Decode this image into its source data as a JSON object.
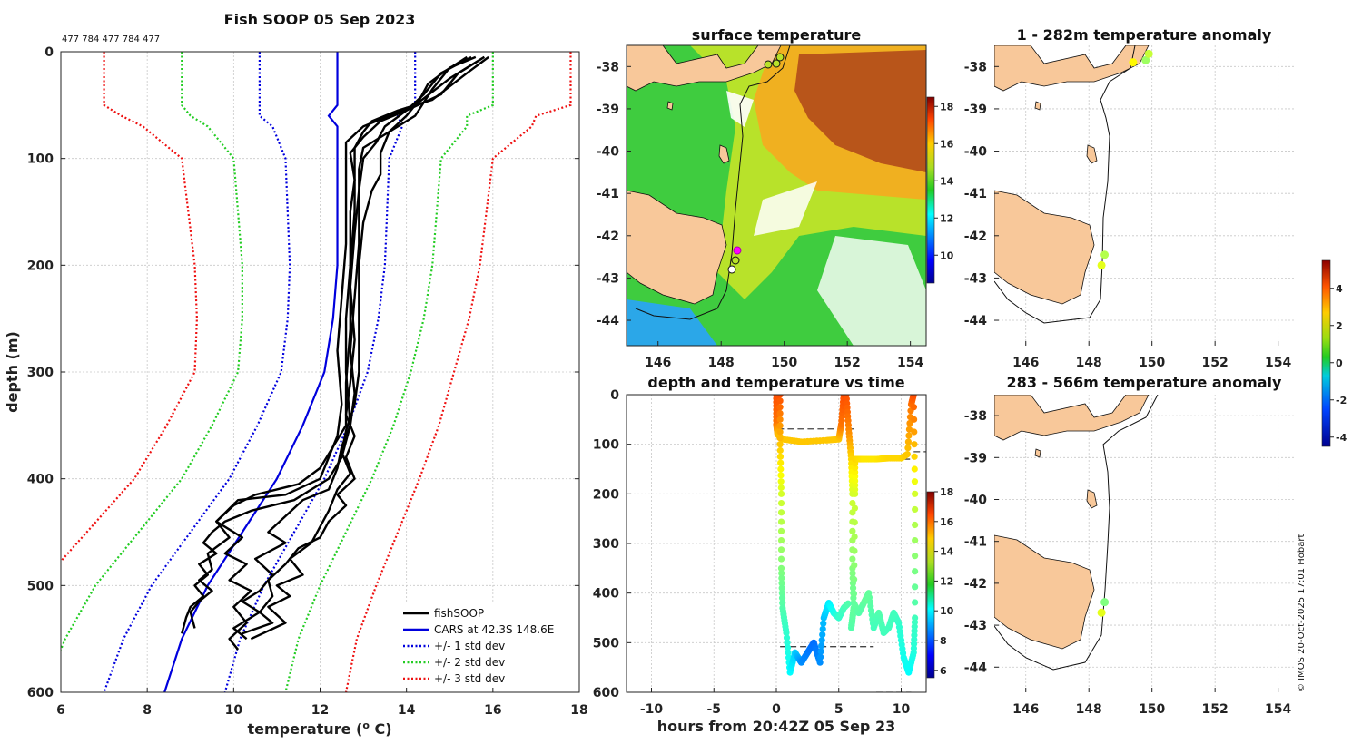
{
  "figure": {
    "title": "Fish SOOP 05 Sep 2023",
    "id_text": "477 784 477 784 477",
    "copyright": "© IMOS 20-Oct-2025 17:01 Hobart"
  },
  "chart_data": [
    {
      "type": "line",
      "id": "profile",
      "title": "Fish SOOP 05 Sep 2023",
      "xlabel": "temperature (",
      "xlabel_sup": "o",
      "xlabel_end": " C)",
      "ylabel": "depth (m)",
      "xlim": [
        6,
        18
      ],
      "ylim": [
        0,
        600
      ],
      "xticks": [
        6,
        8,
        10,
        12,
        14,
        16,
        18
      ],
      "yticks": [
        0,
        100,
        200,
        300,
        400,
        500,
        600
      ],
      "legend": [
        {
          "label": "fishSOOP",
          "color": "#000000",
          "style": "solid"
        },
        {
          "label": "CARS at 42.3S 148.6E",
          "color": "#0000dd",
          "style": "solid"
        },
        {
          "label": "+/- 1 std dev",
          "color": "#0000dd",
          "style": "dotted"
        },
        {
          "label": "+/- 2 std dev",
          "color": "#22cc22",
          "style": "dotted"
        },
        {
          "label": "+/- 3 std dev",
          "color": "#ee1111",
          "style": "dotted"
        }
      ],
      "legend_position": "bottom-right",
      "cars_mean": [
        [
          12.4,
          0
        ],
        [
          12.4,
          50
        ],
        [
          12.2,
          60
        ],
        [
          12.4,
          70
        ],
        [
          12.4,
          100
        ],
        [
          12.4,
          150
        ],
        [
          12.4,
          200
        ],
        [
          12.3,
          250
        ],
        [
          12.1,
          300
        ],
        [
          11.6,
          350
        ],
        [
          11.0,
          400
        ],
        [
          10.2,
          450
        ],
        [
          9.4,
          500
        ],
        [
          8.8,
          550
        ],
        [
          8.4,
          600
        ]
      ],
      "std_offsets": [
        [
          1.8,
          0
        ],
        [
          1.8,
          50
        ],
        [
          1.6,
          60
        ],
        [
          1.2,
          100
        ],
        [
          1.1,
          200
        ],
        [
          1.0,
          300
        ],
        [
          1.1,
          400
        ],
        [
          1.3,
          500
        ],
        [
          1.4,
          600
        ]
      ],
      "fish_profiles": [
        [
          [
            15.9,
            5
          ],
          [
            15.4,
            20
          ],
          [
            14.6,
            45
          ],
          [
            13.8,
            55
          ],
          [
            13.2,
            65
          ],
          [
            13.0,
            75
          ],
          [
            12.8,
            90
          ],
          [
            12.8,
            120
          ],
          [
            12.7,
            150
          ],
          [
            12.7,
            200
          ],
          [
            12.6,
            250
          ],
          [
            12.6,
            300
          ],
          [
            12.7,
            350
          ],
          [
            12.5,
            380
          ],
          [
            12.2,
            400
          ],
          [
            11.4,
            420
          ],
          [
            10.4,
            430
          ],
          [
            9.8,
            440
          ],
          [
            9.5,
            450
          ],
          [
            9.3,
            460
          ],
          [
            9.6,
            470
          ],
          [
            9.2,
            480
          ],
          [
            9.4,
            490
          ],
          [
            9.1,
            500
          ],
          [
            9.3,
            510
          ],
          [
            9.0,
            520
          ],
          [
            8.9,
            530
          ],
          [
            8.8,
            545
          ]
        ],
        [
          [
            15.8,
            5
          ],
          [
            15.0,
            25
          ],
          [
            14.2,
            50
          ],
          [
            13.6,
            60
          ],
          [
            13.0,
            70
          ],
          [
            12.6,
            85
          ],
          [
            12.6,
            110
          ],
          [
            12.6,
            140
          ],
          [
            12.6,
            180
          ],
          [
            12.5,
            230
          ],
          [
            12.4,
            280
          ],
          [
            12.5,
            330
          ],
          [
            12.4,
            360
          ],
          [
            12.2,
            380
          ],
          [
            12.0,
            400
          ],
          [
            11.2,
            415
          ],
          [
            10.1,
            420
          ],
          [
            9.6,
            440
          ],
          [
            9.9,
            455
          ],
          [
            9.4,
            470
          ],
          [
            9.5,
            485
          ],
          [
            9.2,
            495
          ],
          [
            9.5,
            505
          ],
          [
            9.2,
            515
          ],
          [
            9.0,
            525
          ],
          [
            9.1,
            540
          ]
        ],
        [
          [
            15.8,
            5
          ],
          [
            15.2,
            20
          ],
          [
            14.8,
            40
          ],
          [
            14.0,
            55
          ],
          [
            13.4,
            65
          ],
          [
            13.0,
            80
          ],
          [
            12.7,
            95
          ],
          [
            12.8,
            120
          ],
          [
            12.8,
            150
          ],
          [
            12.7,
            200
          ],
          [
            12.7,
            260
          ],
          [
            12.6,
            310
          ],
          [
            12.6,
            350
          ],
          [
            12.3,
            370
          ],
          [
            12.0,
            390
          ],
          [
            11.5,
            405
          ],
          [
            10.5,
            415
          ],
          [
            10.0,
            425
          ],
          [
            9.6,
            440
          ],
          [
            10.2,
            455
          ],
          [
            9.8,
            470
          ],
          [
            10.3,
            480
          ],
          [
            9.9,
            495
          ],
          [
            10.4,
            505
          ],
          [
            10.0,
            520
          ],
          [
            10.3,
            535
          ],
          [
            9.9,
            550
          ],
          [
            10.1,
            560
          ]
        ],
        [
          [
            15.6,
            5
          ],
          [
            15.0,
            15
          ],
          [
            14.6,
            35
          ],
          [
            14.2,
            60
          ],
          [
            13.6,
            75
          ],
          [
            13.0,
            90
          ],
          [
            12.9,
            110
          ],
          [
            12.9,
            140
          ],
          [
            12.9,
            180
          ],
          [
            12.8,
            230
          ],
          [
            12.7,
            280
          ],
          [
            12.8,
            320
          ],
          [
            12.7,
            350
          ],
          [
            12.5,
            370
          ],
          [
            12.4,
            390
          ],
          [
            12.2,
            410
          ],
          [
            11.6,
            420
          ],
          [
            11.2,
            435
          ],
          [
            10.8,
            450
          ],
          [
            11.2,
            460
          ],
          [
            10.5,
            475
          ],
          [
            10.9,
            490
          ],
          [
            10.6,
            505
          ],
          [
            10.2,
            515
          ],
          [
            10.6,
            525
          ],
          [
            10.0,
            540
          ],
          [
            10.3,
            550
          ]
        ],
        [
          [
            15.5,
            5
          ],
          [
            14.8,
            20
          ],
          [
            14.4,
            40
          ],
          [
            14.0,
            55
          ],
          [
            13.5,
            70
          ],
          [
            13.3,
            85
          ],
          [
            13.0,
            100
          ],
          [
            12.9,
            130
          ],
          [
            12.8,
            170
          ],
          [
            12.7,
            220
          ],
          [
            12.8,
            270
          ],
          [
            12.7,
            310
          ],
          [
            12.6,
            340
          ],
          [
            12.8,
            360
          ],
          [
            12.6,
            380
          ],
          [
            12.8,
            400
          ],
          [
            12.4,
            415
          ],
          [
            12.6,
            425
          ],
          [
            12.2,
            440
          ],
          [
            12.0,
            455
          ],
          [
            11.5,
            465
          ],
          [
            11.2,
            480
          ],
          [
            10.8,
            495
          ],
          [
            10.9,
            510
          ],
          [
            10.6,
            525
          ],
          [
            10.9,
            535
          ],
          [
            10.2,
            545
          ]
        ],
        [
          [
            15.4,
            5
          ],
          [
            14.9,
            18
          ],
          [
            14.5,
            30
          ],
          [
            14.3,
            45
          ],
          [
            14.0,
            60
          ],
          [
            13.6,
            75
          ],
          [
            13.4,
            95
          ],
          [
            13.4,
            115
          ],
          [
            13.2,
            130
          ],
          [
            13.0,
            160
          ],
          [
            12.9,
            200
          ],
          [
            12.9,
            250
          ],
          [
            12.9,
            300
          ],
          [
            12.8,
            330
          ],
          [
            12.6,
            355
          ],
          [
            12.5,
            375
          ],
          [
            12.7,
            395
          ],
          [
            12.4,
            410
          ],
          [
            12.2,
            430
          ],
          [
            12.0,
            445
          ],
          [
            11.8,
            460
          ],
          [
            11.3,
            475
          ],
          [
            11.6,
            490
          ],
          [
            11.0,
            500
          ],
          [
            11.3,
            510
          ],
          [
            10.8,
            520
          ],
          [
            11.2,
            535
          ],
          [
            10.4,
            550
          ]
        ]
      ]
    },
    {
      "type": "heatmap",
      "id": "sst_map",
      "title": "surface temperature",
      "xlim": [
        145,
        154.5
      ],
      "ylim": [
        -44.6,
        -37.5
      ],
      "xticks": [
        146,
        148,
        150,
        152,
        154
      ],
      "yticks": [
        -38,
        -39,
        -40,
        -41,
        -42,
        -43,
        -44
      ],
      "colorbar_ticks": [
        10,
        12,
        14,
        16,
        18
      ],
      "colorbar_range": [
        8.5,
        18.5
      ]
    },
    {
      "type": "scatter",
      "id": "time_series",
      "title": "depth and temperature vs time",
      "xlabel": "hours from 20:42Z 05 Sep 23",
      "xlim": [
        -12,
        12
      ],
      "ylim": [
        0,
        600
      ],
      "xticks": [
        -10,
        -5,
        0,
        5,
        10
      ],
      "yticks": [
        0,
        100,
        200,
        300,
        400,
        500,
        600
      ],
      "colorbar_ticks": [
        6,
        8,
        10,
        12,
        14,
        16,
        18
      ],
      "colorbar_range": [
        5.5,
        18
      ],
      "track": [
        [
          0,
          0,
          15.5
        ],
        [
          0,
          60,
          15.0
        ],
        [
          0.1,
          80,
          14.2
        ],
        [
          0.5,
          90,
          14.0
        ],
        [
          2,
          95,
          14.0
        ],
        [
          4,
          92,
          14.0
        ],
        [
          5,
          90,
          14.0
        ],
        [
          5.2,
          60,
          15.0
        ],
        [
          5.4,
          0,
          15.5
        ],
        [
          5.6,
          0,
          15.5
        ],
        [
          5.8,
          70,
          14.8
        ],
        [
          6.0,
          130,
          13.8
        ],
        [
          6.1,
          200,
          12.8
        ],
        [
          6.1,
          350,
          11.8
        ],
        [
          6.2,
          430,
          11.4
        ],
        [
          6.0,
          470,
          11.2
        ],
        [
          6.2,
          430,
          11.4
        ],
        [
          6.3,
          200,
          12.8
        ],
        [
          6.3,
          130,
          13.8
        ],
        [
          7,
          130,
          13.6
        ],
        [
          8,
          130,
          13.6
        ],
        [
          9,
          128,
          13.8
        ],
        [
          10,
          128,
          13.8
        ],
        [
          10.5,
          120,
          14.0
        ],
        [
          10.8,
          20,
          15.0
        ],
        [
          11,
          0,
          15.5
        ],
        [
          11.1,
          200,
          12.8
        ],
        [
          11.1,
          450,
          11.0
        ],
        [
          11,
          520,
          10.6
        ],
        [
          10.6,
          560,
          10.2
        ],
        [
          10.2,
          530,
          10.4
        ],
        [
          9.8,
          460,
          10.8
        ],
        [
          9.4,
          440,
          11.0
        ],
        [
          9,
          470,
          11.0
        ],
        [
          8.6,
          480,
          11.0
        ],
        [
          8.2,
          440,
          11.2
        ],
        [
          7.8,
          470,
          11.0
        ],
        [
          7.4,
          400,
          11.4
        ],
        [
          7,
          420,
          11.4
        ],
        [
          6.6,
          440,
          11.2
        ],
        [
          6.2,
          420,
          11.4
        ]
      ],
      "track2": [
        [
          0.3,
          0,
          15.5
        ],
        [
          0.3,
          100,
          14.0
        ],
        [
          0.4,
          200,
          12.8
        ],
        [
          0.4,
          350,
          11.8
        ],
        [
          0.5,
          430,
          11.2
        ],
        [
          0.8,
          480,
          10.8
        ],
        [
          1.1,
          560,
          10.2
        ],
        [
          1.5,
          520,
          9.6
        ],
        [
          2,
          540,
          8.8
        ],
        [
          2.5,
          520,
          8.6
        ],
        [
          3,
          500,
          8.4
        ],
        [
          3.5,
          540,
          8.8
        ],
        [
          3.8,
          450,
          9.4
        ],
        [
          4.2,
          420,
          10.0
        ],
        [
          4.6,
          440,
          10.4
        ],
        [
          5,
          450,
          10.8
        ],
        [
          5.4,
          430,
          11.0
        ],
        [
          5.8,
          420,
          11.2
        ]
      ],
      "ref_lines": [
        [
          0.1,
          69,
          6.5,
          69
        ],
        [
          6.2,
          130,
          10.8,
          130
        ],
        [
          0.3,
          508,
          7.8,
          508
        ],
        [
          8,
          600,
          10.8,
          600
        ],
        [
          11,
          115,
          12,
          115
        ]
      ]
    },
    {
      "type": "scatter",
      "id": "anom_top",
      "title": "1 - 282m temperature anomaly",
      "xlim": [
        145,
        154.5
      ],
      "ylim": [
        -44.6,
        -37.5
      ],
      "xticks": [
        146,
        148,
        150,
        152,
        154
      ],
      "yticks": [
        -38,
        -39,
        -40,
        -41,
        -42,
        -43,
        -44
      ],
      "points": [
        [
          149.4,
          -37.9,
          1.8
        ],
        [
          149.8,
          -37.85,
          0.8
        ],
        [
          149.9,
          -37.7,
          1.2
        ],
        [
          148.5,
          -42.45,
          1.0
        ],
        [
          148.4,
          -42.7,
          1.5
        ]
      ]
    },
    {
      "type": "scatter",
      "id": "anom_bottom",
      "title": "283 - 566m temperature anomaly",
      "xlim": [
        145,
        154.5
      ],
      "ylim": [
        -44.6,
        -37.5
      ],
      "xticks": [
        146,
        148,
        150,
        152,
        154
      ],
      "yticks": [
        -38,
        -39,
        -40,
        -41,
        -42,
        -43,
        -44
      ],
      "points": [
        [
          148.5,
          -42.45,
          0.5
        ],
        [
          148.4,
          -42.7,
          1.5
        ]
      ],
      "colorbar_ticks": [
        -4,
        -2,
        0,
        2,
        4
      ],
      "colorbar_range": [
        -4.5,
        5.5
      ]
    }
  ]
}
